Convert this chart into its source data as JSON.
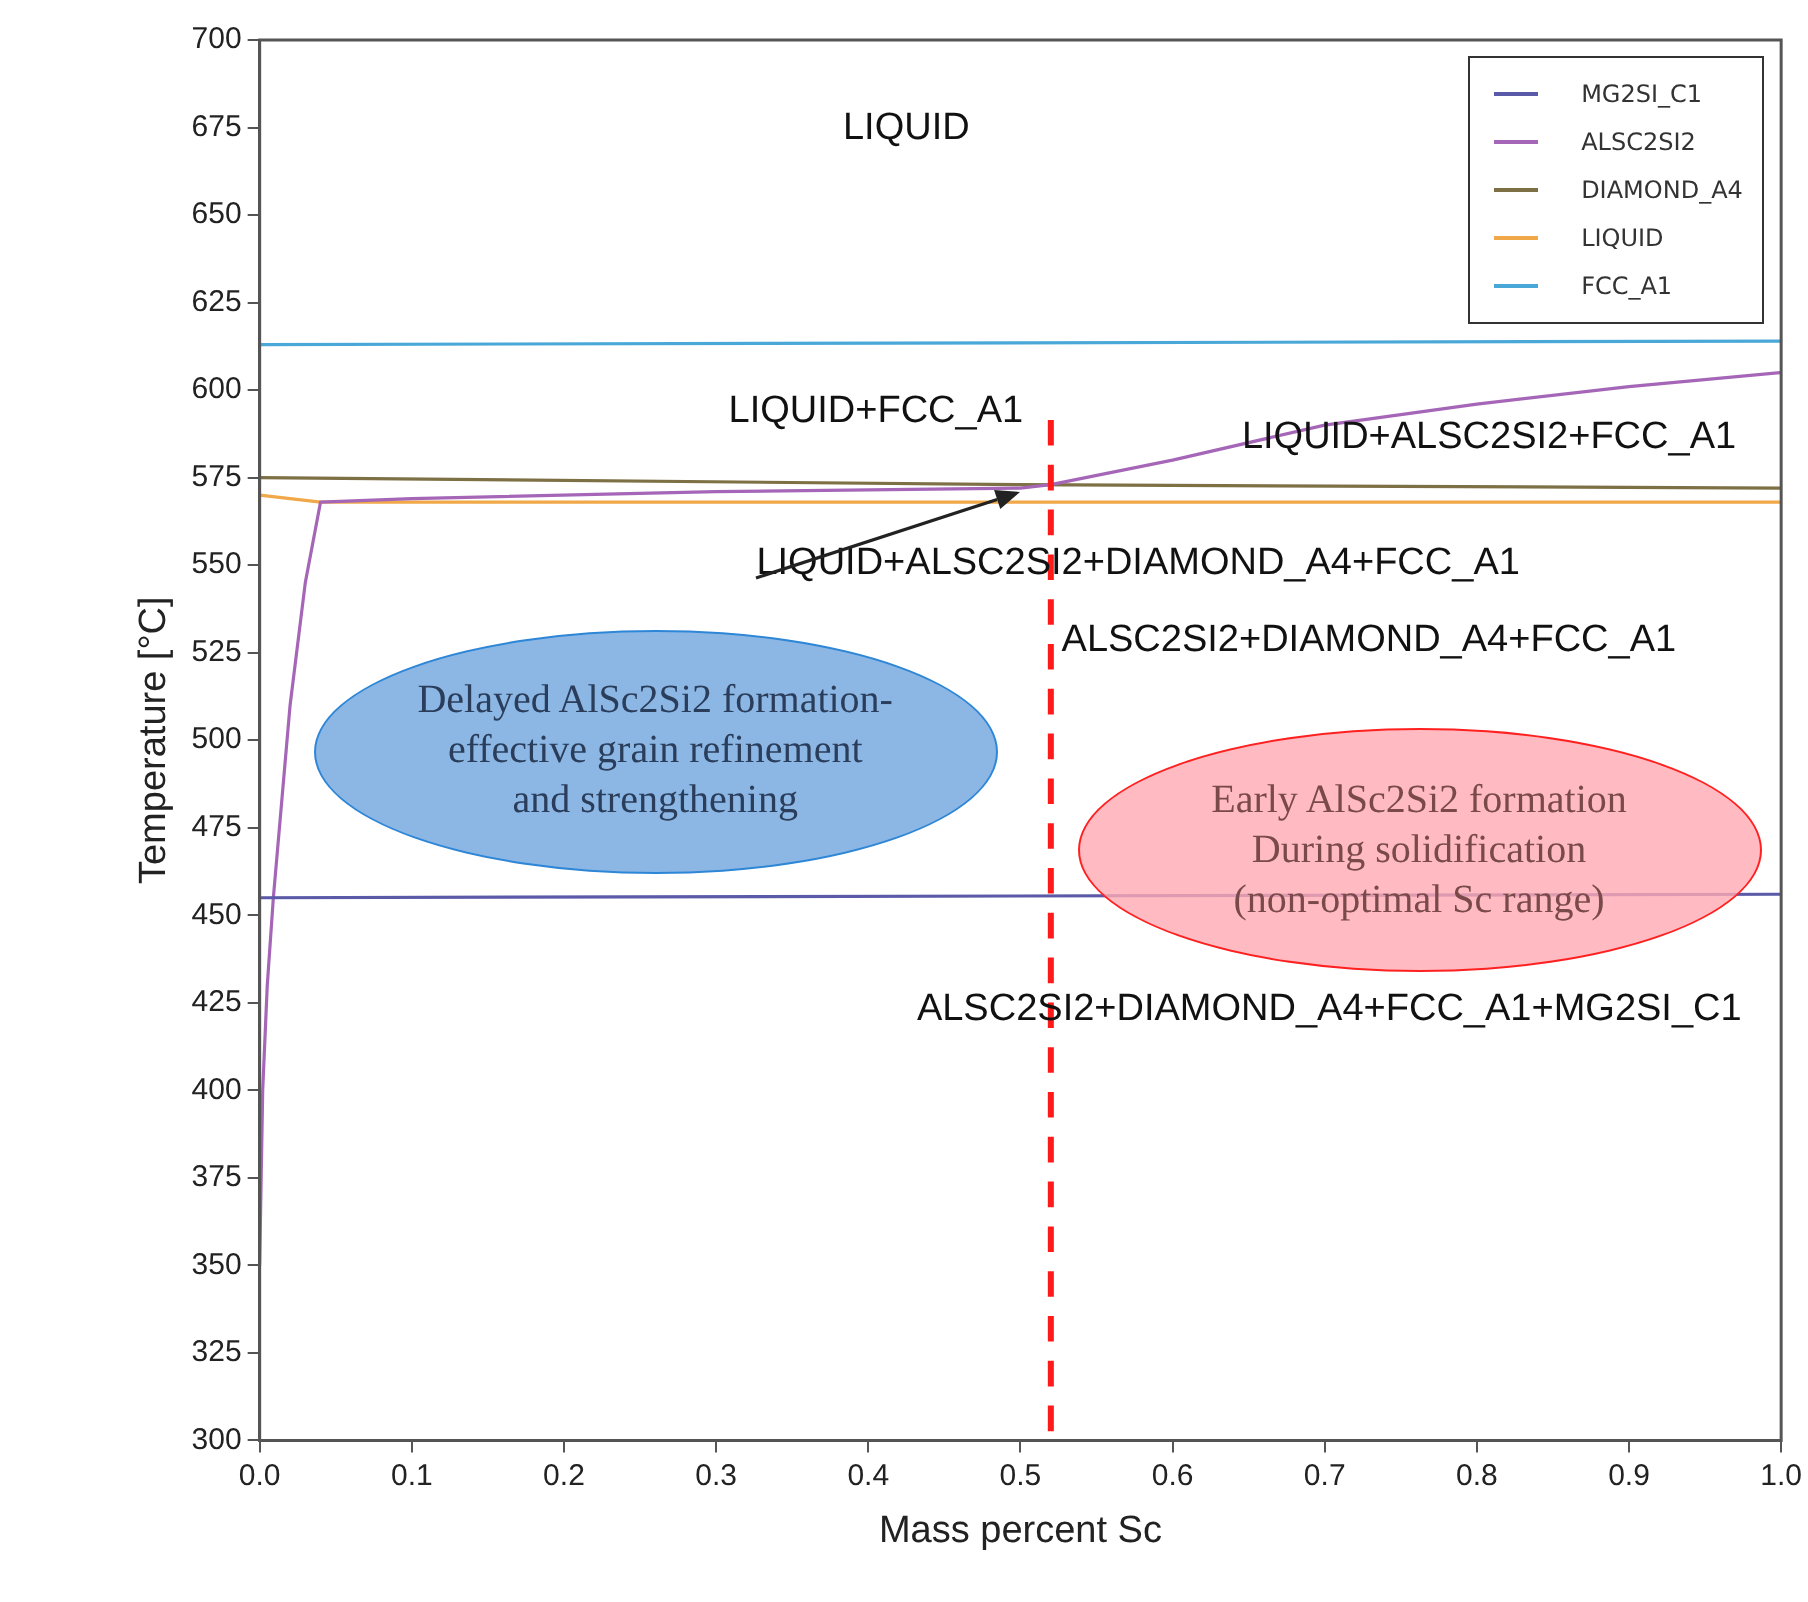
{
  "chart_data": {
    "type": "line",
    "xlabel": "Mass percent Sc",
    "ylabel": "Temperature [°C]",
    "xlim": [
      0,
      1
    ],
    "ylim": [
      300,
      700
    ],
    "xticks": [
      {
        "value": 0,
        "label": "0.0"
      },
      {
        "value": 0.1,
        "label": "0.1"
      },
      {
        "value": 0.2,
        "label": "0.2"
      },
      {
        "value": 0.3,
        "label": "0.3"
      },
      {
        "value": 0.4,
        "label": "0.4"
      },
      {
        "value": 0.5,
        "label": "0.5"
      },
      {
        "value": 0.6,
        "label": "0.6"
      },
      {
        "value": 0.7,
        "label": "0.7"
      },
      {
        "value": 0.8,
        "label": "0.8"
      },
      {
        "value": 0.9,
        "label": "0.9"
      },
      {
        "value": 1,
        "label": "1.0"
      }
    ],
    "yticks": [
      300,
      325,
      350,
      375,
      400,
      425,
      450,
      475,
      500,
      525,
      550,
      575,
      600,
      625,
      650,
      675,
      700
    ],
    "grid": false,
    "legend": "top right",
    "marker": "none",
    "line_style": "solid",
    "series": [
      {
        "name": "MG2SI_C1",
        "color": "#5a5aa8",
        "x": [
          0,
          1
        ],
        "values": [
          455,
          456
        ]
      },
      {
        "name": "ALSC2SI2",
        "color": "#a566b8",
        "x": [
          0,
          0.002,
          0.005,
          0.009,
          0.02,
          0.03,
          0.04,
          0.1,
          0.3,
          0.5,
          0.52,
          0.6,
          0.7,
          0.8,
          0.9,
          1
        ],
        "values": [
          350,
          400,
          430,
          455,
          510,
          545,
          568,
          569,
          571,
          572,
          573,
          580,
          590,
          596,
          601,
          605
        ]
      },
      {
        "name": "DIAMOND_A4",
        "color": "#7d7045",
        "x": [
          0,
          0.5,
          1
        ],
        "values": [
          575,
          573,
          572
        ]
      },
      {
        "name": "LIQUID",
        "color": "#f0a848",
        "x": [
          0,
          0.04,
          0.5,
          1
        ],
        "values": [
          570,
          568,
          568,
          568
        ]
      },
      {
        "name": "FCC_A1",
        "color": "#4aa8d8",
        "x": [
          0,
          1
        ],
        "values": [
          613,
          614
        ]
      }
    ],
    "ref_lines": [
      {
        "axis": "x",
        "value": 0.52,
        "color": "#ff1a1a",
        "line_style": "dashed"
      }
    ],
    "annotations": [
      "LIQUID",
      "LIQUID+FCC_A1",
      "LIQUID+ALSC2SI2+FCC_A1",
      {
        "text": "LIQUID+ALSC2SI2+DIAMOND_A4+FCC_A1",
        "x": 0.5,
        "y": 571
      },
      "ALSC2SI2+DIAMOND_A4+FCC_A1",
      "ALSC2SI2+DIAMOND_A4+FCC_A1+MG2SI_C1",
      "Delayed AlSc2Si2 formation-\neffective grain refinement\nand strengthening",
      "Early AlSc2Si2 formation\nDuring solidification\n(non-optimal Sc range)"
    ]
  }
}
